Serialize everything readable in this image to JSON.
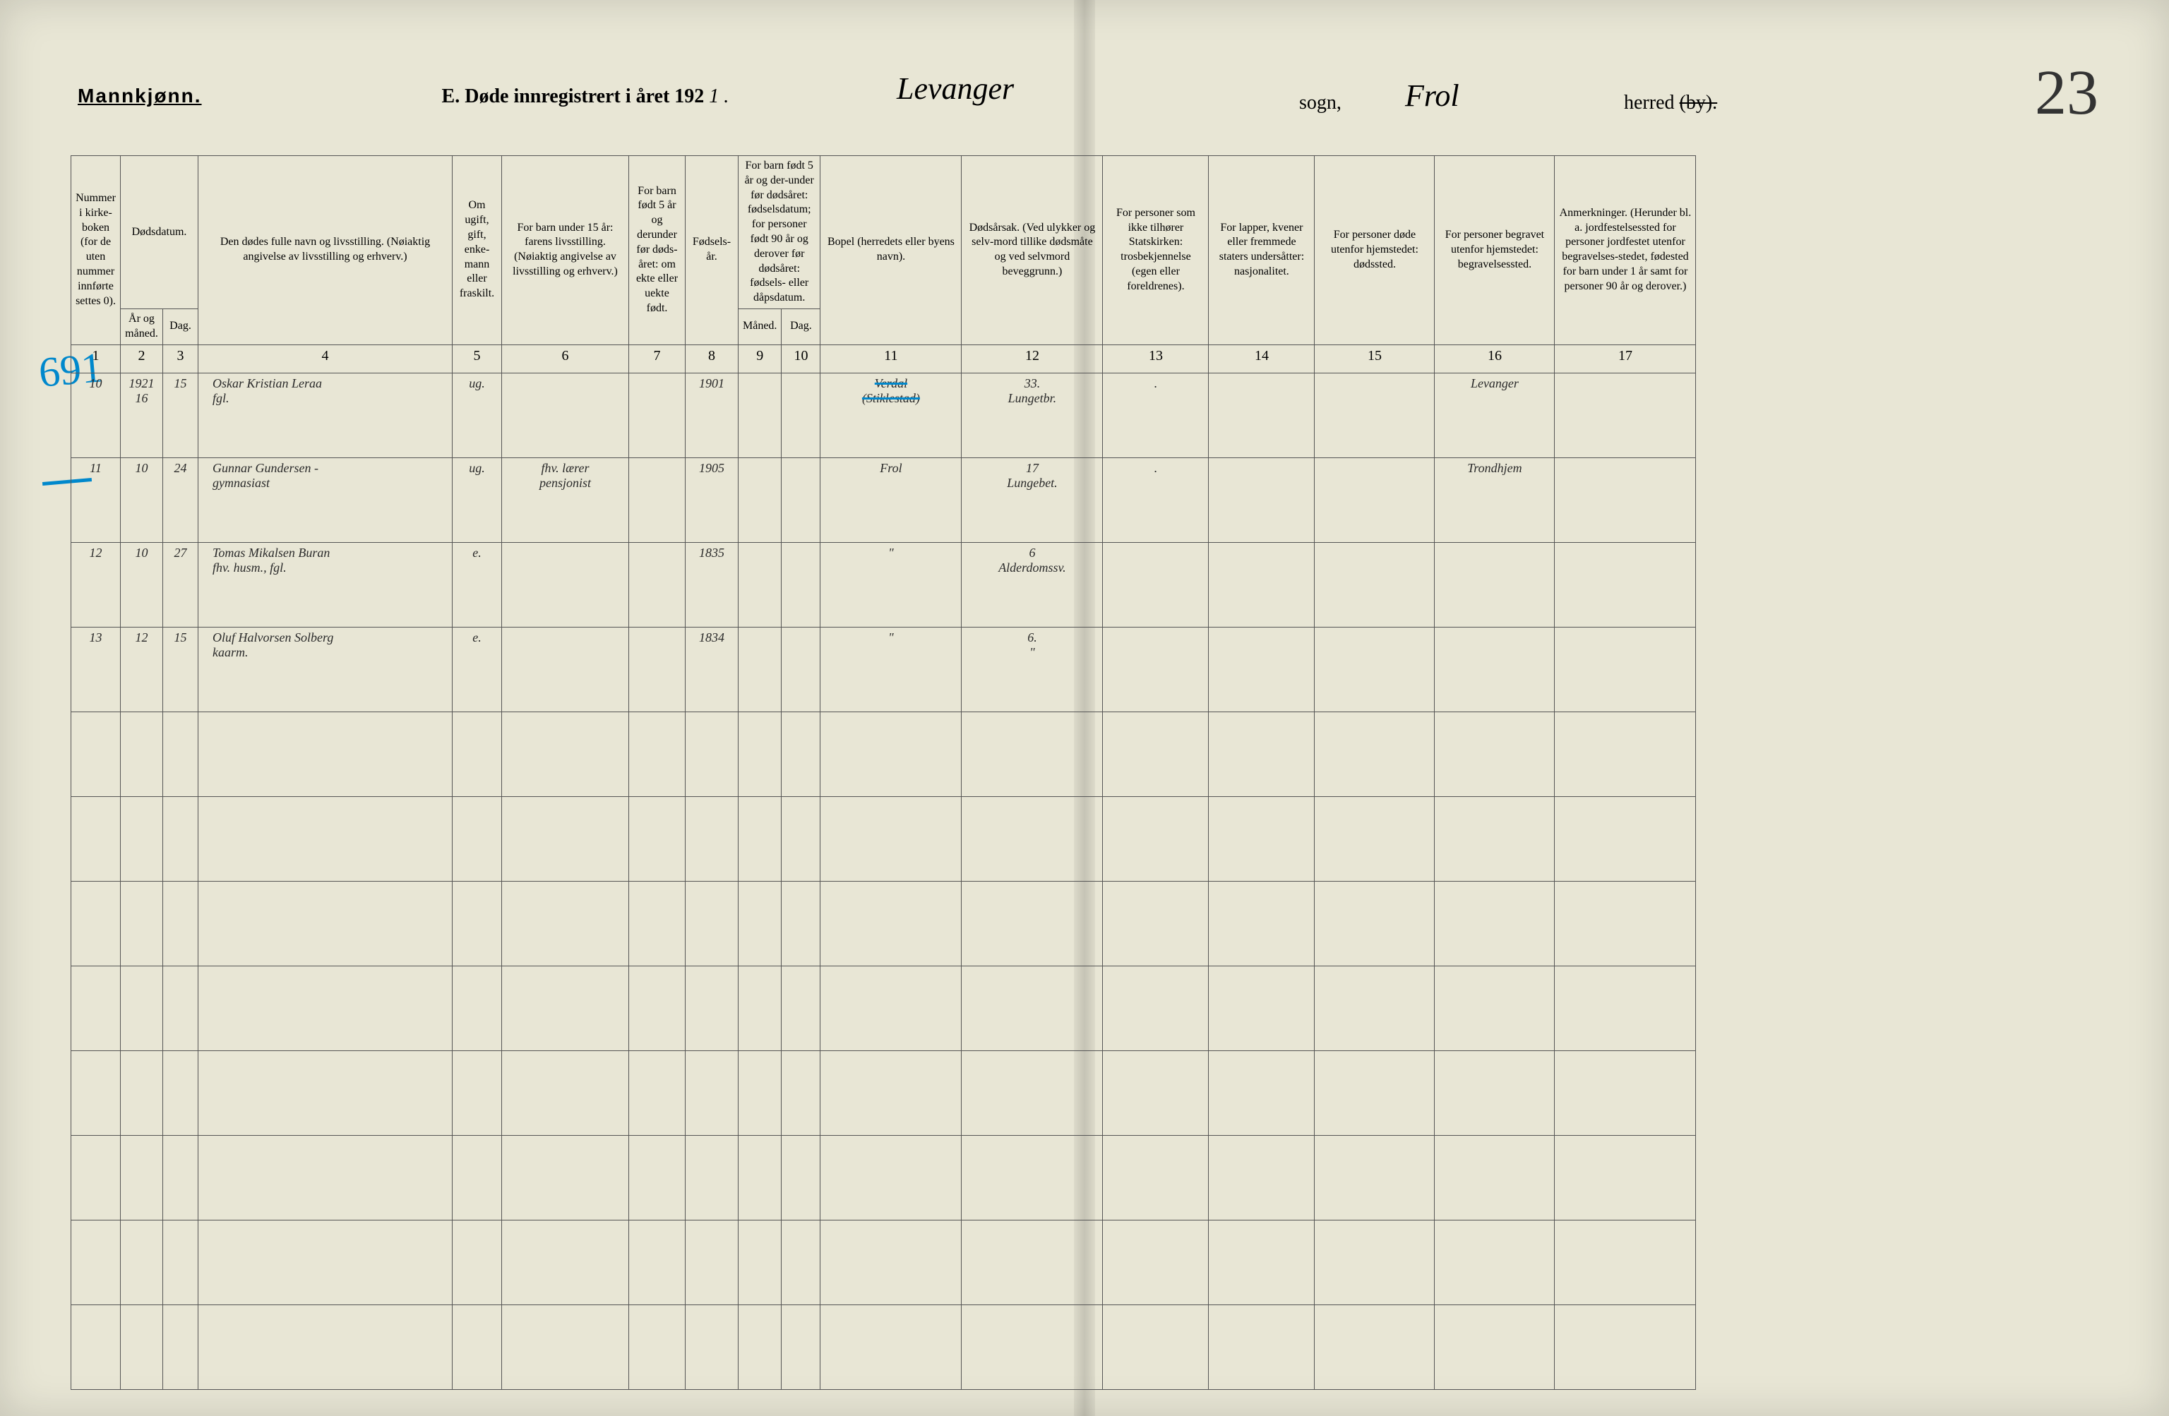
{
  "colors": {
    "paper": "#e8e6d5",
    "ink": "#2a2a2a",
    "blue_correction": "#0088cc",
    "border": "#555555"
  },
  "typography": {
    "printed_fontsize": 18,
    "header_fontsize": 28,
    "handwritten_fontsize": 32,
    "page_number_fontsize": 90
  },
  "header": {
    "gender": "Mannkjønn.",
    "title_prefix": "E.",
    "title_text": "Døde innregistrert i året 192",
    "year_suffix": "1 .",
    "sogn_value": "Levanger",
    "sogn_label": "sogn,",
    "herred_value": "Frol",
    "herred_label_prefix": "herred ",
    "herred_label_strike": "(by).",
    "page_number": "23"
  },
  "side_annotations": {
    "topleft_number": "691"
  },
  "columns": {
    "c1": "Nummer i kirke-boken (for de uten nummer innførte settes 0).",
    "c2_group": "Dødsdatum.",
    "c2a": "År og måned.",
    "c2b": "Dag.",
    "c4": "Den dødes fulle navn og livsstilling. (Nøiaktig angivelse av livsstilling og erhverv.)",
    "c5": "Om ugift, gift, enke-mann eller fraskilt.",
    "c6": "For barn under 15 år: farens livsstilling. (Nøiaktig angivelse av livsstilling og erhverv.)",
    "c7": "For barn født 5 år og derunder før døds-året: om ekte eller uekte født.",
    "c8": "Fødsels-år.",
    "c9_group": "For barn født 5 år og der-under før dødsåret: fødselsdatum; for personer født 90 år og derover før dødsåret: fødsels- eller dåpsdatum.",
    "c9a": "Måned.",
    "c9b": "Dag.",
    "c11": "Bopel (herredets eller byens navn).",
    "c12": "Dødsårsak. (Ved ulykker og selv-mord tillike dødsmåte og ved selvmord beveggrunn.)",
    "c13": "For personer som ikke tilhører Statskirken: trosbekjennelse (egen eller foreldrenes).",
    "c14": "For lapper, kvener eller fremmede staters undersåtter: nasjonalitet.",
    "c15": "For personer døde utenfor hjemstedet: dødssted.",
    "c16": "For personer begravet utenfor hjemstedet: begravelsessted.",
    "c17": "Anmerkninger. (Herunder bl. a. jordfestelsessted for personer jordfestet utenfor begravelses-stedet, fødested for barn under 1 år samt for personer 90 år og derover.)"
  },
  "col_numbers": [
    "1",
    "2",
    "3",
    "4",
    "5",
    "6",
    "7",
    "8",
    "9",
    "10",
    "11",
    "12",
    "13",
    "14",
    "15",
    "16",
    "17"
  ],
  "entries": [
    {
      "num": "10",
      "year_month": "1921\n16",
      "day": "15",
      "name": "Oskar Kristian Leraa\n                    fgl.",
      "status": "ug.",
      "parent": "",
      "legit": "",
      "birthyear": "1901",
      "bmonth": "",
      "bday": "",
      "residence": "Verdal\n(Stiklestad)",
      "residence_struck": true,
      "cause": "33.\nLungetbr.",
      "nonstate": ".",
      "national": "",
      "deathplace": "",
      "burialplace": "Levanger",
      "remarks": ""
    },
    {
      "num": "11",
      "year_month": "10",
      "day": "24",
      "name": "Gunnar Gundersen -\n          gymnasiast",
      "status": "ug.",
      "parent": "fhv. lærer\npensjonist",
      "legit": "",
      "birthyear": "1905",
      "bmonth": "",
      "bday": "",
      "residence": "Frol",
      "cause": "17\nLungebet.",
      "nonstate": ".",
      "national": "",
      "deathplace": "",
      "burialplace": "Trondhjem",
      "remarks": ""
    },
    {
      "num": "12",
      "year_month": "10",
      "day": "27",
      "name": "Tomas Mikalsen Buran\n       fhv. husm., fgl.",
      "status": "e.",
      "parent": "",
      "legit": "",
      "birthyear": "1835",
      "bmonth": "",
      "bday": "",
      "residence": "\"",
      "cause": "6\nAlderdomssv.",
      "nonstate": "",
      "national": "",
      "deathplace": "",
      "burialplace": "",
      "remarks": ""
    },
    {
      "num": "13",
      "year_month": "12",
      "day": "15",
      "name": "Oluf Halvorsen Solberg\n             kaarm.",
      "status": "e.",
      "parent": "",
      "legit": "",
      "birthyear": "1834",
      "bmonth": "",
      "bday": "",
      "residence": "\"",
      "cause": "6.\n\"",
      "nonstate": "",
      "national": "",
      "deathplace": "",
      "burialplace": "",
      "remarks": ""
    }
  ],
  "empty_rows": 8
}
